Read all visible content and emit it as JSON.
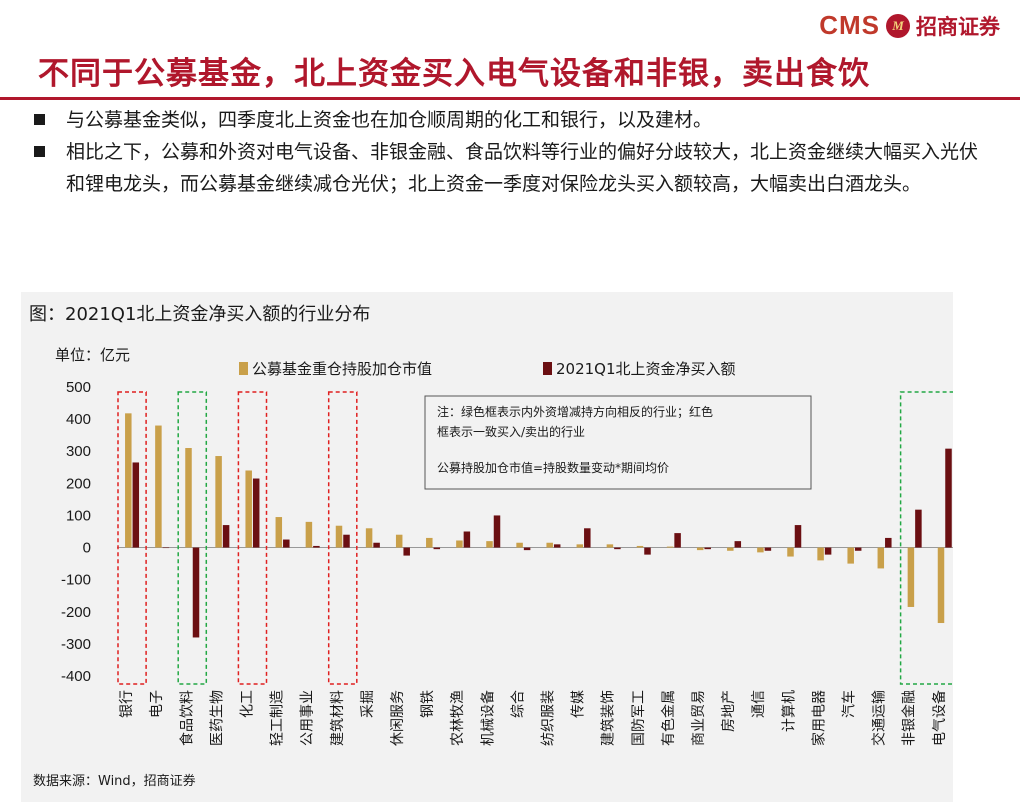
{
  "header": {
    "logo_latin": "CMS",
    "logo_mark": "M",
    "logo_cn": "招商证券",
    "title": "不同于公募基金，北上资金买入电气设备和非银，卖出食饮"
  },
  "bullets": [
    {
      "text": "与公募基金类似，四季度北上资金也在加仓顺周期的化工和银行，以及建材。"
    },
    {
      "text": "相比之下，公募和外资对电气设备、非银金融、食品饮料等行业的偏好分歧较大，北上资金继续大幅买入光伏和锂电龙头，而公募基金继续减仓光伏；北上资金一季度对保险龙头买入额较高，大幅卖出白酒龙头。"
    }
  ],
  "chart_data": {
    "type": "bar",
    "title": "图：2021Q1北上资金净买入额的行业分布",
    "unit_label": "单位：亿元",
    "ylim": [
      -400,
      500
    ],
    "yticks": [
      "500",
      "400",
      "300",
      "200",
      "100",
      "0",
      "-100",
      "-200",
      "-300",
      "-400"
    ],
    "categories": [
      "银行",
      "电子",
      "食品饮料",
      "医药生物",
      "化工",
      "轻工制造",
      "公用事业",
      "建筑材料",
      "采掘",
      "休闲服务",
      "钢铁",
      "农林牧渔",
      "机械设备",
      "综合",
      "纺织服装",
      "传媒",
      "建筑装饰",
      "国防军工",
      "有色金属",
      "商业贸易",
      "房地产",
      "通信",
      "计算机",
      "家用电器",
      "汽车",
      "交通运输",
      "非银金融",
      "电气设备"
    ],
    "series": [
      {
        "name": "公募基金重仓持股加仓市值",
        "color": "#c9a04a",
        "values": [
          418,
          380,
          310,
          285,
          240,
          95,
          80,
          68,
          60,
          40,
          30,
          22,
          20,
          15,
          15,
          10,
          10,
          5,
          3,
          -8,
          -10,
          -15,
          -28,
          -40,
          -50,
          -65,
          -185,
          -235
        ]
      },
      {
        "name": "2021Q1北上资金净买入额",
        "color": "#6b0f12",
        "values": [
          265,
          0,
          -280,
          70,
          215,
          25,
          5,
          40,
          15,
          -25,
          -5,
          50,
          100,
          -8,
          10,
          60,
          -5,
          -22,
          45,
          -5,
          20,
          -10,
          70,
          -22,
          -10,
          30,
          118,
          308
        ]
      }
    ],
    "legend_position": "top",
    "annotation_lines": [
      "注：绿色框表示内外资增减持方向相反的行业；红色",
      "框表示一致买入/卖出的行业",
      "公募持股加仓市值=持股数量变动*期间均价"
    ],
    "highlight_boxes": [
      {
        "category": "银行",
        "kind": "红色",
        "color": "#e02020"
      },
      {
        "category": "食品饮料",
        "kind": "绿色",
        "color": "#22a844"
      },
      {
        "category": "化工",
        "kind": "红色",
        "color": "#e02020"
      },
      {
        "category": "建筑材料",
        "kind": "红色",
        "color": "#e02020"
      },
      {
        "category": "非银金融",
        "kind": "绿色",
        "color": "#22a844",
        "span": 2
      }
    ],
    "source": "数据来源：Wind，招商证券"
  }
}
